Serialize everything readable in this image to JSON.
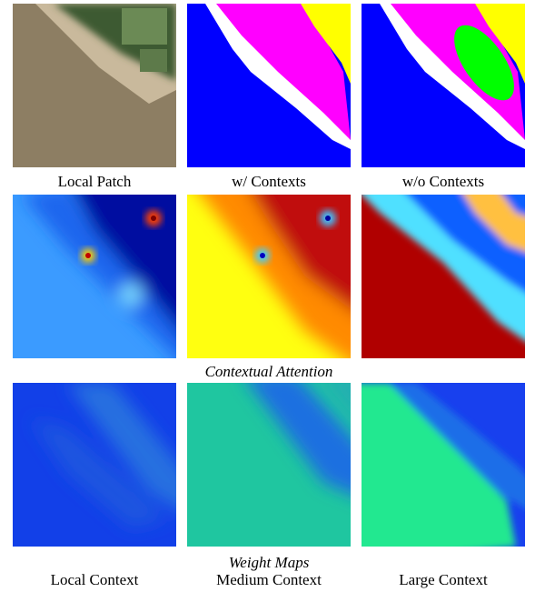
{
  "captions": [
    "Local Patch",
    "w/ Contexts",
    "w/o Contexts"
  ],
  "section_labels": {
    "attention": "Contextual Attention",
    "weights": "Weight Maps"
  },
  "weight_captions": [
    "Local Context",
    "Medium Context",
    "Large Context"
  ]
}
